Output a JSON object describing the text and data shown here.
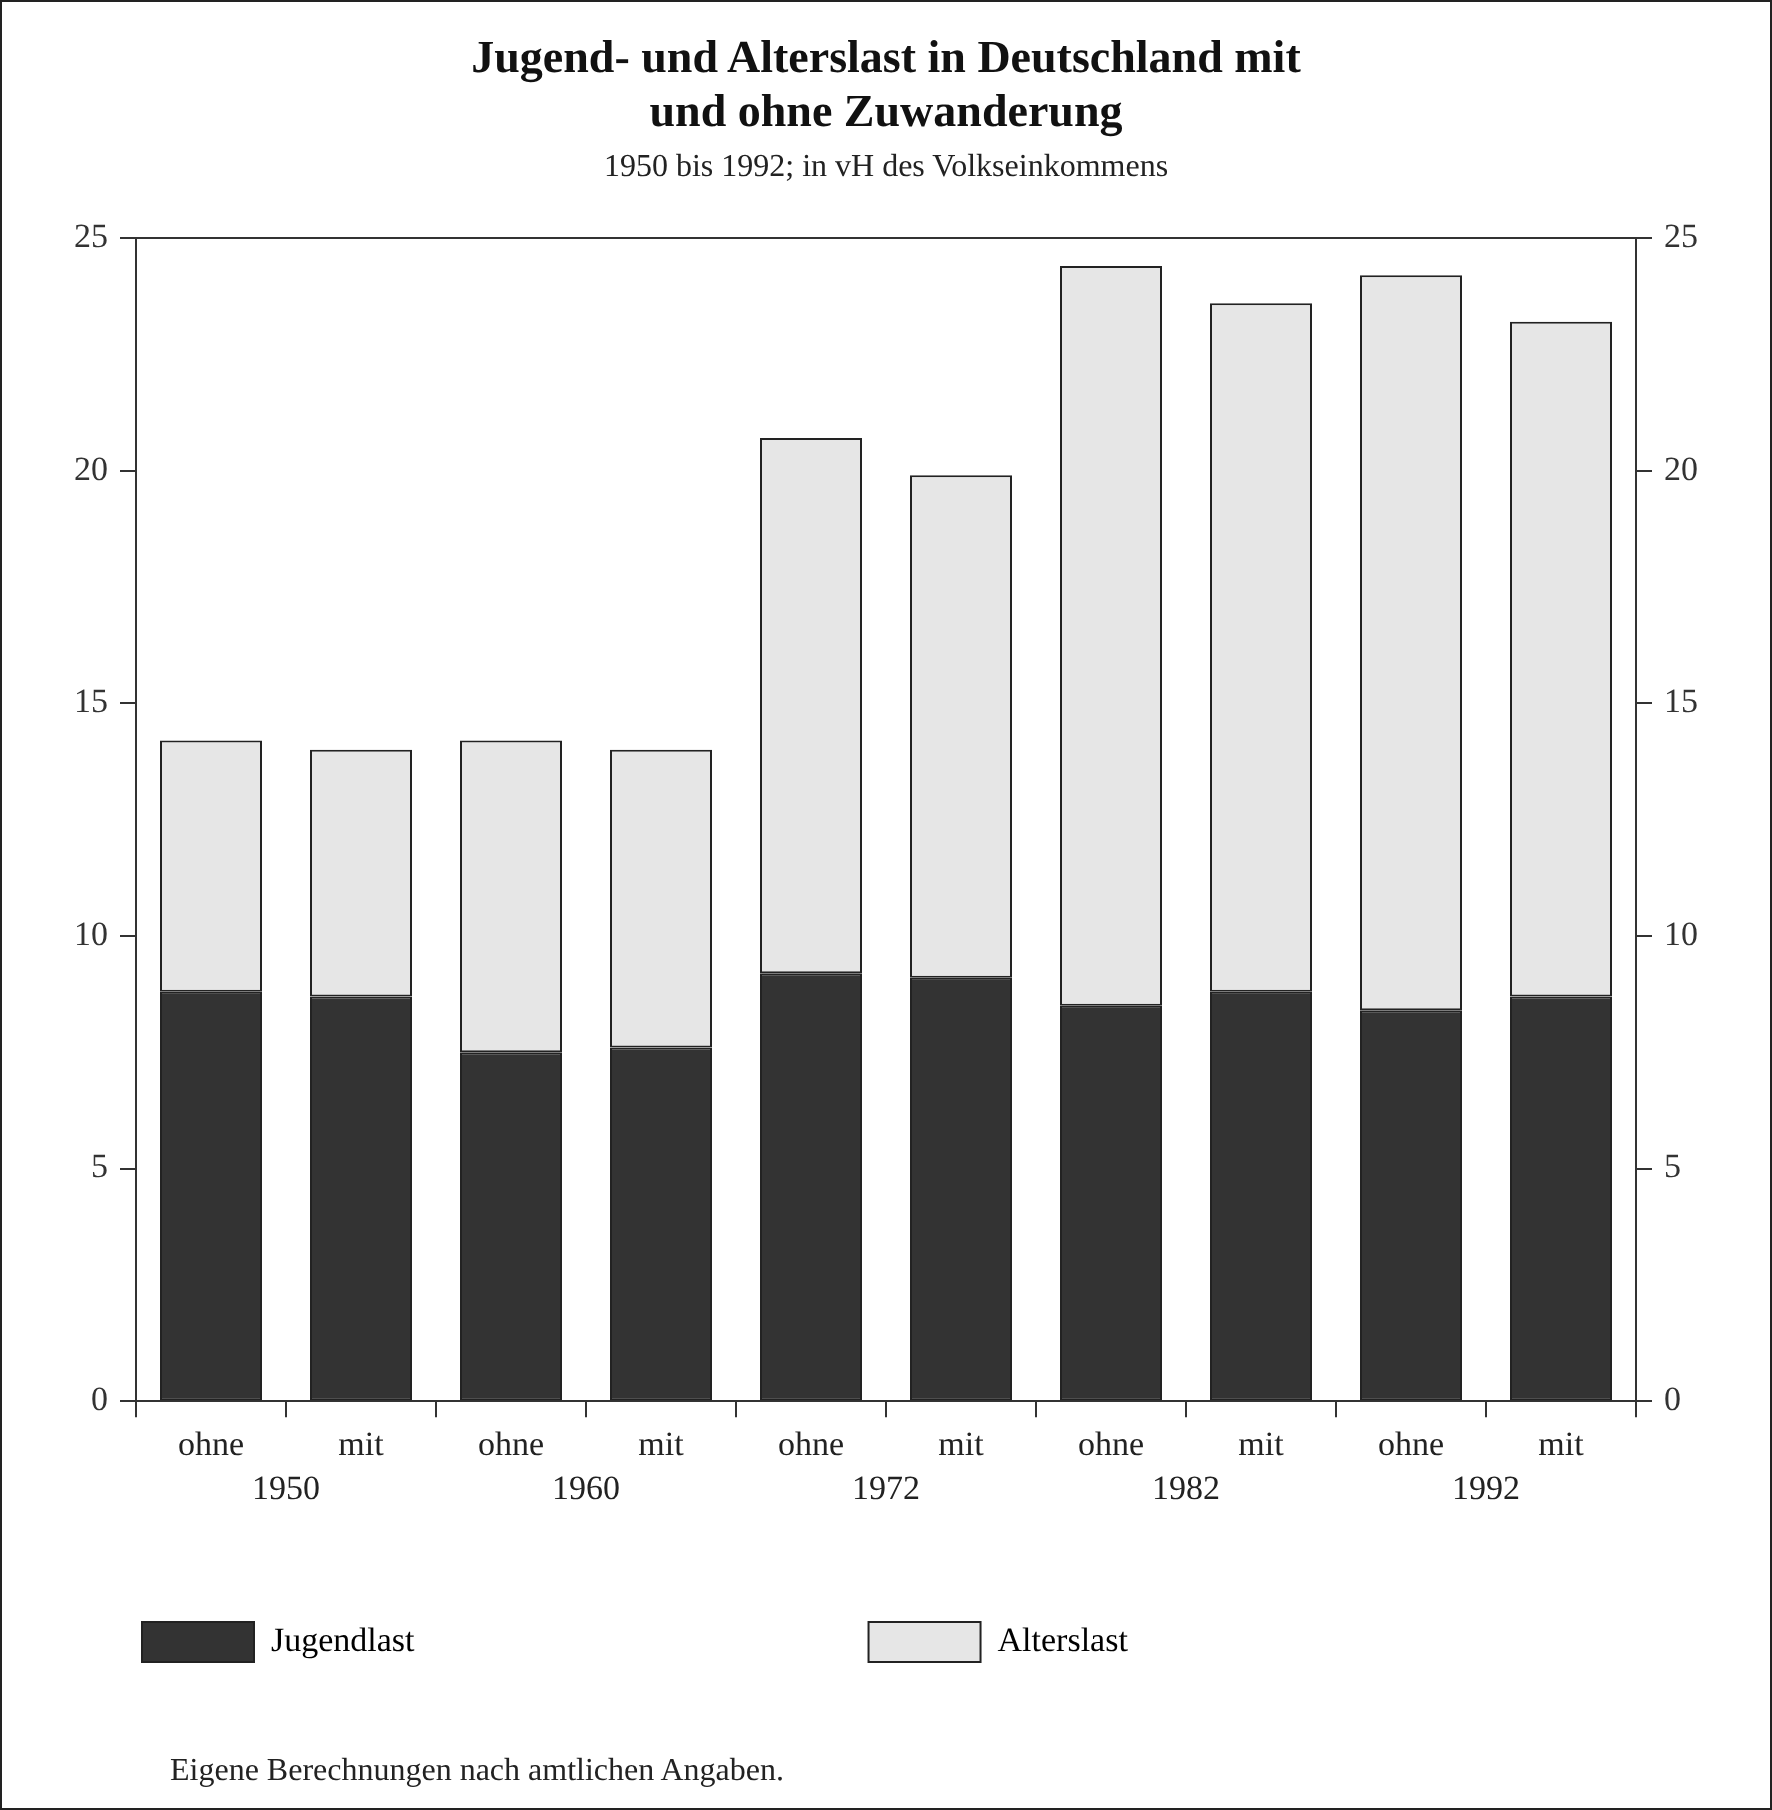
{
  "chart_data": {
    "type": "bar",
    "title": "Jugend- und Alterslast in Deutschland mit und ohne Zuwanderung",
    "subtitle": "1950 bis 1992; in vH des Volkseinkommens",
    "categories": [
      "ohne",
      "mit",
      "ohne",
      "mit",
      "ohne",
      "mit",
      "ohne",
      "mit",
      "ohne",
      "mit"
    ],
    "series": [
      {
        "name": "Jugendlast",
        "color": "#333333",
        "values": [
          8.8,
          8.7,
          7.5,
          7.6,
          9.2,
          9.1,
          8.5,
          8.8,
          8.4,
          8.7
        ]
      },
      {
        "name": "Alterslast",
        "color": "#e6e6e6",
        "values": [
          5.4,
          5.3,
          6.7,
          6.4,
          11.5,
          10.8,
          15.9,
          14.8,
          15.8,
          14.5
        ]
      }
    ],
    "stacked": true,
    "ylim": [
      0,
      25
    ],
    "yticks": [
      0,
      5,
      10,
      15,
      20,
      25
    ],
    "y2lim": [
      0,
      25
    ],
    "y2ticks": [
      0,
      5,
      10,
      15,
      20,
      25
    ],
    "grid": false,
    "legend": "bottom left",
    "annotations": [
      "1950",
      "1960",
      "1972",
      "1982",
      "1992",
      "Eigene Berechnungen nach amtlichen Angaben."
    ]
  }
}
